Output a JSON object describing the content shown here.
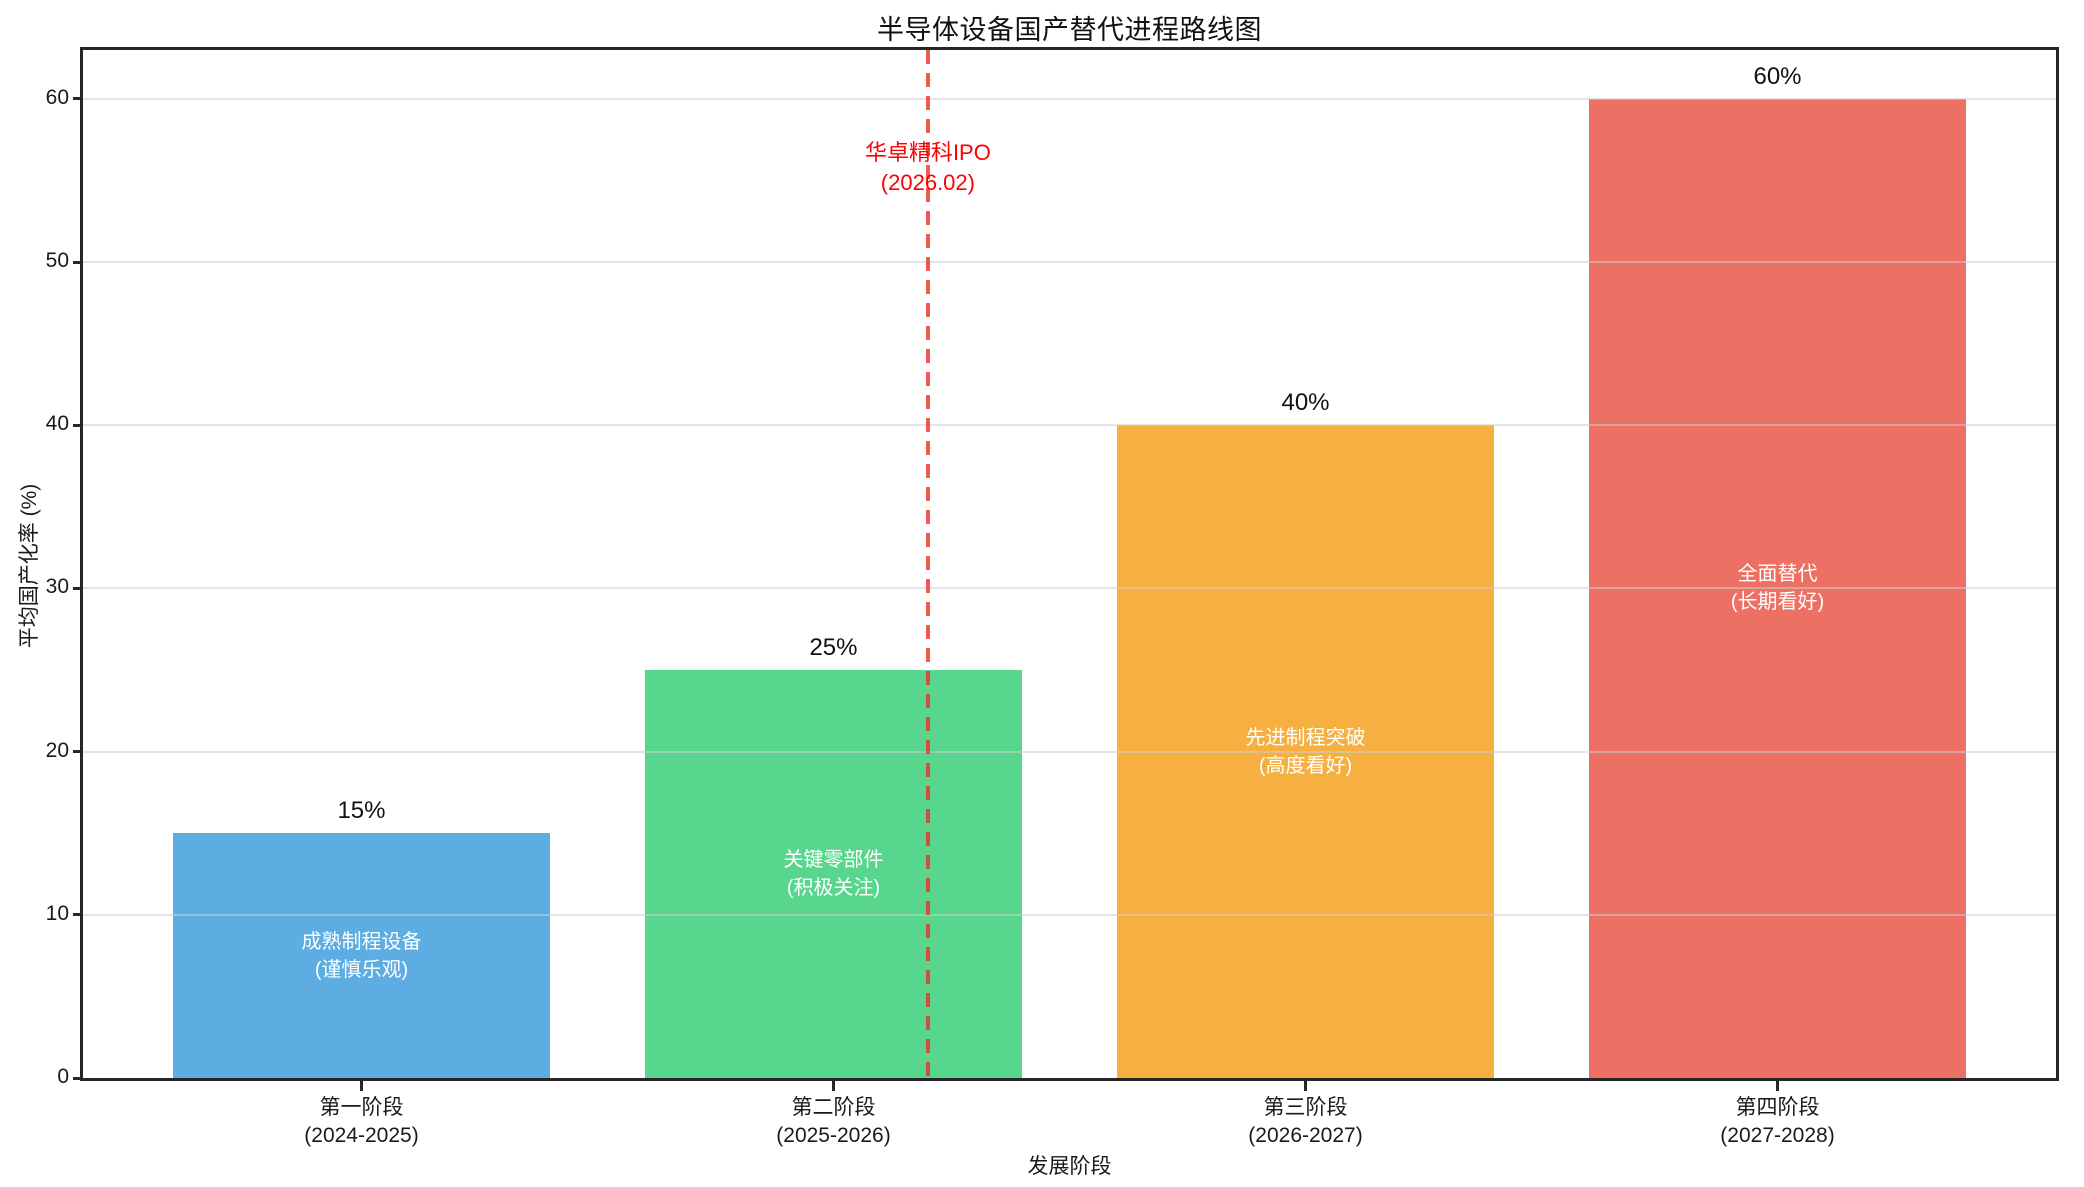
{
  "figure": {
    "background": "#ffffff"
  },
  "chart_data": {
    "type": "bar",
    "title": "半导体设备国产替代进程路线图",
    "xlabel": "发展阶段",
    "ylabel": "平均国产化率 (%)",
    "categories": [
      {
        "stage": "第一阶段",
        "period": "(2024-2025)"
      },
      {
        "stage": "第二阶段",
        "period": "(2025-2026)"
      },
      {
        "stage": "第三阶段",
        "period": "(2026-2027)"
      },
      {
        "stage": "第四阶段",
        "period": "(2027-2028)"
      }
    ],
    "values": [
      15,
      25,
      40,
      60
    ],
    "value_labels": [
      "15%",
      "25%",
      "40%",
      "60%"
    ],
    "bar_labels": [
      {
        "line1": "成熟制程设备",
        "line2": "(谨慎乐观)"
      },
      {
        "line1": "关键零部件",
        "line2": "(积极关注)"
      },
      {
        "line1": "先进制程突破",
        "line2": "(高度看好)"
      },
      {
        "line1": "全面替代",
        "line2": "(长期看好)"
      }
    ],
    "bar_colors": [
      "#5DADE2",
      "#58D68D",
      "#F5B041",
      "#EC7063"
    ],
    "bar_width_units": 0.8,
    "yticks": [
      0,
      10,
      20,
      30,
      40,
      50,
      60
    ],
    "ylim": [
      0,
      63
    ],
    "xlim": [
      -0.59,
      3.59
    ],
    "grid": "horizontal",
    "legend": null,
    "vline": {
      "x": 1.2,
      "style": "dashed",
      "color_rgba": "rgba(235,50,40,0.8)"
    },
    "annotation": {
      "text1": "华卓精科IPO",
      "text2": "(2026.02)",
      "color": "#ff0000"
    }
  }
}
